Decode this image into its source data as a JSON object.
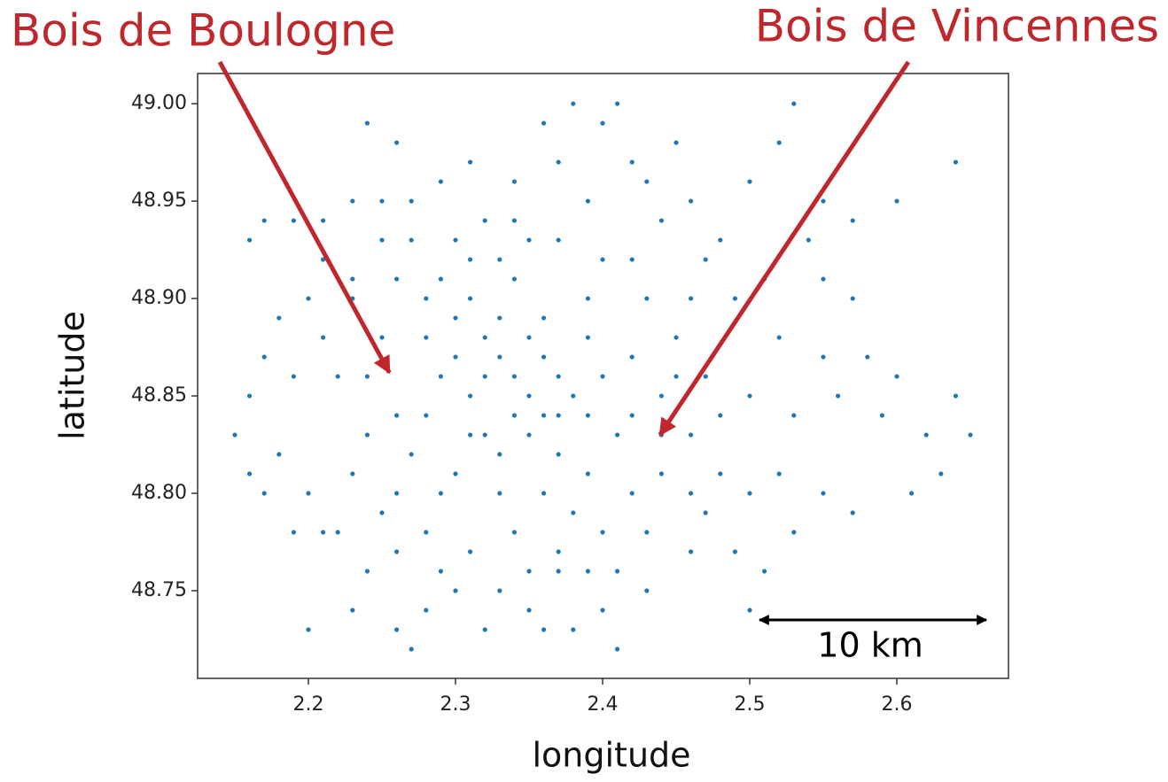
{
  "chart_data": {
    "type": "scatter",
    "xlabel": "longitude",
    "ylabel": "latitude",
    "xlim": [
      2.1247,
      2.6759
    ],
    "ylim": [
      48.705,
      49.0155
    ],
    "xticks": [
      2.2,
      2.3,
      2.4,
      2.5,
      2.6
    ],
    "yticks": [
      {
        "value": 48.75,
        "label": "48.75"
      },
      {
        "value": 48.8,
        "label": "48.80"
      },
      {
        "value": 48.85,
        "label": "48.85"
      },
      {
        "value": 48.9,
        "label": "48.90"
      },
      {
        "value": 48.95,
        "label": "48.95"
      },
      {
        "value": 49.0,
        "label": "49.00"
      }
    ],
    "color": "#1f77b4",
    "annotation_color": "#c0272d",
    "annotations": [
      {
        "text": "Bois de Boulogne",
        "xy": [
          2.255,
          48.862
        ]
      },
      {
        "text": "Bois de Vincennes",
        "xy": [
          2.439,
          48.83
        ]
      }
    ],
    "scale_bar": {
      "label": "10 km"
    },
    "x": [
      2.34,
      2.33,
      2.35,
      2.32,
      2.36,
      2.31,
      2.34,
      2.37,
      2.33,
      2.35,
      2.3,
      2.38,
      2.36,
      2.32,
      2.29,
      2.39,
      2.31,
      2.37,
      2.34,
      2.28,
      2.4,
      2.41,
      2.27,
      2.3,
      2.26,
      2.33,
      2.36,
      2.39,
      2.42,
      2.43,
      2.28,
      2.3,
      2.34,
      2.37,
      2.4,
      2.26,
      2.25,
      2.44,
      2.45,
      2.46,
      2.24,
      2.23,
      2.25,
      2.28,
      2.31,
      2.34,
      2.37,
      2.4,
      2.42,
      2.44,
      2.18,
      2.17,
      2.2,
      2.19,
      2.16,
      2.21,
      2.22,
      2.18,
      2.16,
      2.2,
      2.15,
      2.17,
      2.21,
      2.19,
      2.23,
      2.2,
      2.26,
      2.28,
      2.27,
      2.3,
      2.33,
      2.35,
      2.38,
      2.41,
      2.4,
      2.43,
      2.37,
      2.32,
      2.41,
      2.36,
      2.47,
      2.49,
      2.46,
      2.5,
      2.52,
      2.55,
      2.57,
      2.53,
      2.51,
      2.5,
      2.48,
      2.5,
      2.53,
      2.56,
      2.59,
      2.62,
      2.64,
      2.65,
      2.63,
      2.61,
      2.58,
      2.6,
      2.55,
      2.52,
      2.49,
      2.47,
      2.51,
      2.55,
      2.57,
      2.54,
      2.44,
      2.46,
      2.48,
      2.5,
      2.52,
      2.53,
      2.55,
      2.57,
      2.6,
      2.64,
      2.42,
      2.4,
      2.38,
      2.36,
      2.41,
      2.37,
      2.34,
      2.31,
      2.29,
      2.26,
      2.24,
      2.23,
      2.21,
      2.19,
      2.17,
      2.16,
      2.25,
      2.27,
      2.32,
      2.45,
      2.43,
      2.39,
      2.35,
      2.31,
      2.27,
      2.23,
      2.28,
      2.39,
      2.42,
      2.46,
      2.33,
      2.35,
      2.31,
      2.37,
      2.29,
      2.38,
      2.32,
      2.36,
      2.3,
      2.39,
      2.42,
      2.44,
      2.45,
      2.47,
      2.48,
      2.46,
      2.43,
      2.39,
      2.35,
      2.29,
      2.26,
      2.24,
      2.22,
      2.26,
      2.24,
      2.23,
      2.21,
      2.25,
      2.29,
      2.33
    ],
    "values": [
      48.86,
      48.87,
      48.85,
      48.88,
      48.87,
      48.85,
      48.84,
      48.86,
      48.89,
      48.83,
      48.87,
      48.85,
      48.89,
      48.83,
      48.86,
      48.88,
      48.9,
      48.82,
      48.91,
      48.84,
      48.86,
      48.83,
      48.82,
      48.81,
      48.84,
      48.8,
      48.8,
      48.81,
      48.87,
      48.9,
      48.9,
      48.93,
      48.94,
      48.93,
      48.92,
      48.91,
      48.88,
      48.85,
      48.88,
      48.83,
      48.83,
      48.81,
      48.79,
      48.78,
      48.77,
      48.78,
      48.77,
      48.78,
      48.8,
      48.81,
      48.89,
      48.87,
      48.9,
      48.86,
      48.85,
      48.88,
      48.86,
      48.82,
      48.81,
      48.8,
      48.83,
      48.8,
      48.78,
      48.78,
      48.74,
      48.73,
      48.73,
      48.74,
      48.72,
      48.75,
      48.75,
      48.74,
      48.73,
      48.76,
      48.74,
      48.75,
      48.76,
      48.73,
      48.72,
      48.73,
      48.79,
      48.77,
      48.77,
      48.8,
      48.81,
      48.8,
      48.79,
      48.78,
      48.76,
      48.74,
      48.84,
      48.85,
      48.84,
      48.85,
      48.84,
      48.83,
      48.85,
      48.83,
      48.81,
      48.8,
      48.87,
      48.86,
      48.87,
      48.88,
      48.9,
      48.92,
      48.91,
      48.91,
      48.9,
      48.93,
      48.94,
      48.95,
      48.93,
      48.96,
      48.98,
      49.0,
      48.95,
      48.94,
      48.95,
      48.97,
      48.97,
      48.99,
      49.0,
      48.99,
      49.0,
      48.97,
      48.96,
      48.97,
      48.96,
      48.98,
      48.99,
      48.95,
      48.94,
      48.94,
      48.94,
      48.93,
      48.93,
      48.95,
      48.94,
      48.98,
      48.96,
      48.95,
      48.93,
      48.92,
      48.93,
      48.91,
      48.88,
      48.9,
      48.92,
      48.9,
      48.82,
      48.88,
      48.83,
      48.84,
      48.8,
      48.79,
      48.86,
      48.84,
      48.89,
      48.84,
      48.84,
      48.83,
      48.86,
      48.86,
      48.81,
      48.8,
      48.78,
      48.76,
      48.76,
      48.76,
      48.77,
      48.76,
      48.78,
      48.8,
      48.86,
      48.9,
      48.92,
      48.95,
      48.91,
      48.92
    ]
  }
}
